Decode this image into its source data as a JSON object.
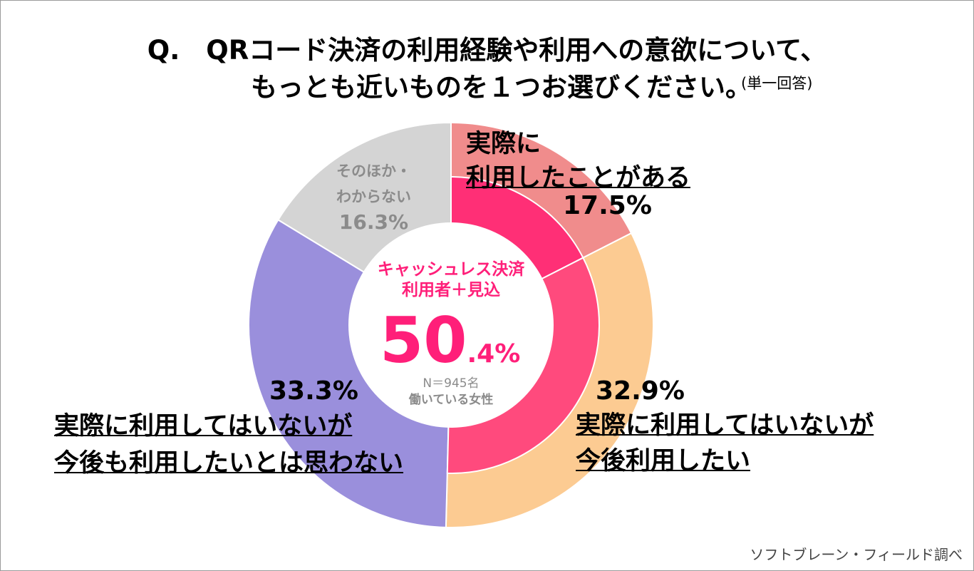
{
  "title": {
    "line1": "Q.　QRコード決済の利用経験や利用への意欲について、",
    "line2": "もっとも近いものを１つお選びください。",
    "note": "(単一回答)"
  },
  "chart_data": {
    "type": "pie",
    "style": "donut",
    "outer": {
      "slices": [
        {
          "label": "実際に利用したことがある",
          "value": 17.5,
          "color": "#f08c8c"
        },
        {
          "label": "実際に利用してはいないが今後利用したい",
          "value": 32.9,
          "color": "#fccb92"
        },
        {
          "label": "実際に利用してはいないが今後も利用したいとは思わない",
          "value": 33.3,
          "color": "#9a8fdc"
        },
        {
          "label": "そのほか・わからない",
          "value": 16.3,
          "color": "#d4d4d4"
        }
      ]
    },
    "inner": {
      "slices": [
        {
          "label": "実際に利用したことがある",
          "value": 17.5,
          "color": "#ff2f76"
        },
        {
          "label": "実際に利用してはいないが今後利用したい",
          "value": 32.9,
          "color": "#ff4a7d"
        }
      ],
      "total": 50.4
    }
  },
  "labels": {
    "used_line1": "実際に",
    "used_line2": "利用したことがある",
    "used_pct": "17.5%",
    "want_line1": "実際に利用してはいないが",
    "want_line2": "今後利用したい",
    "want_pct": "32.9%",
    "nowant_line1": "実際に利用してはいないが",
    "nowant_line2": "今後も利用したいとは思わない",
    "nowant_pct": "33.3%",
    "other_line1": "そのほか・",
    "other_line2": "わからない",
    "other_pct": "16.3%"
  },
  "center": {
    "line1": "キャッシュレス決済",
    "line2": "利用者＋見込",
    "value_int": "50",
    "value_dec": ".4%",
    "n": "N＝945名",
    "sample": "働いている女性"
  },
  "source": "ソフトブレーン・フィールド調べ"
}
